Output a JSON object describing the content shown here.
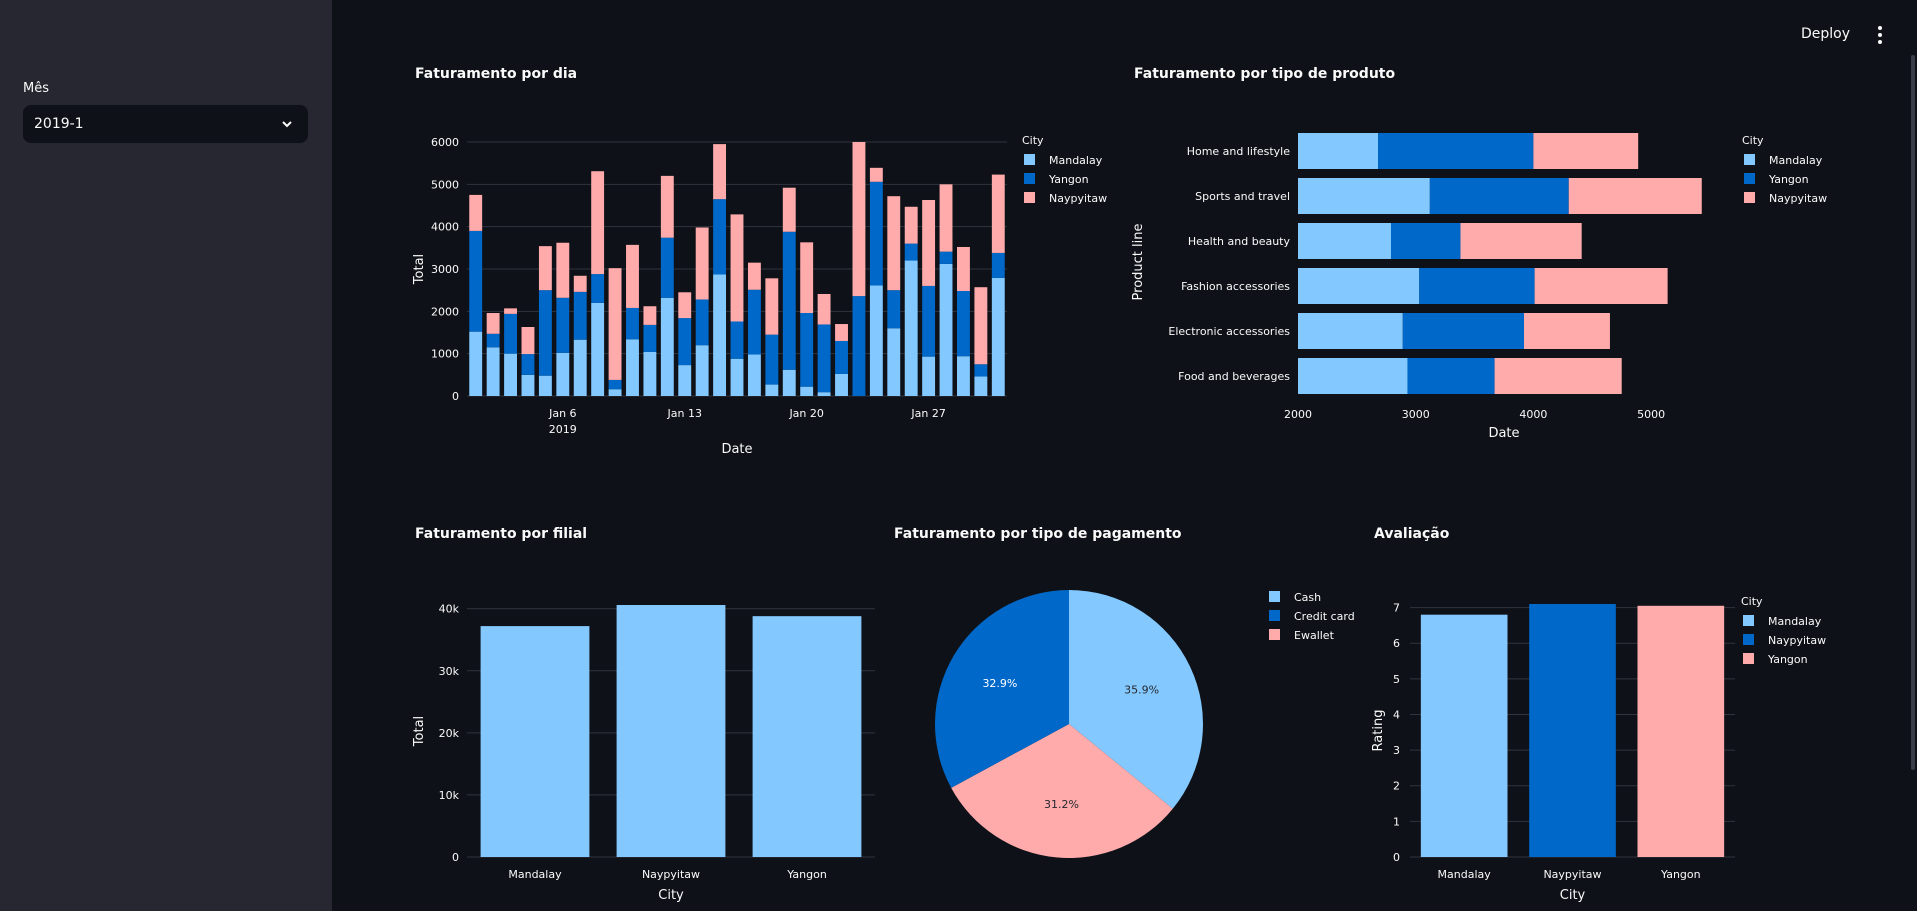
{
  "sidebar": {
    "filter_label": "Mês",
    "month_value": "2019-1"
  },
  "header": {
    "deploy_label": "Deploy"
  },
  "colors": {
    "mandalay": "#83c9ff",
    "yangon": "#0068c9",
    "naypyitaw": "#ffabab",
    "grid": "#31333f",
    "text": "#fafafa"
  },
  "chart_data": [
    {
      "id": "daily",
      "type": "bar",
      "title": "Faturamento por dia",
      "xlabel": "Date",
      "ylabel": "Total",
      "ylim": [
        0,
        6000
      ],
      "yticks": [
        "0",
        "1000",
        "2000",
        "3000",
        "4000",
        "5000",
        "6000"
      ],
      "xticks": [
        {
          "label": "Jan 6",
          "sub": "2019",
          "day": 6
        },
        {
          "label": "Jan 13",
          "sub": "",
          "day": 13
        },
        {
          "label": "Jan 20",
          "sub": "",
          "day": 20
        },
        {
          "label": "Jan 27",
          "sub": "",
          "day": 27
        }
      ],
      "legend_title": "City",
      "x": [
        1,
        2,
        3,
        4,
        5,
        6,
        7,
        8,
        9,
        10,
        11,
        12,
        13,
        14,
        15,
        16,
        17,
        18,
        19,
        20,
        21,
        22,
        23,
        24,
        25,
        26,
        27,
        28,
        29,
        30,
        31
      ],
      "series": [
        {
          "name": "Mandalay",
          "values": [
            1520,
            1150,
            1000,
            500,
            480,
            1020,
            1330,
            2200,
            160,
            1340,
            1040,
            2320,
            730,
            1200,
            2870,
            880,
            980,
            270,
            620,
            220,
            90,
            520,
            0,
            2610,
            1600,
            3200,
            930,
            3120,
            940,
            460,
            2790
          ]
        },
        {
          "name": "Yangon",
          "values": [
            2380,
            320,
            940,
            490,
            2020,
            1300,
            1130,
            680,
            220,
            740,
            640,
            1420,
            1110,
            1080,
            1780,
            880,
            1530,
            1180,
            3260,
            1740,
            1600,
            780,
            2360,
            2450,
            900,
            400,
            1670,
            290,
            1540,
            290,
            590
          ]
        },
        {
          "name": "Naypyitaw",
          "values": [
            850,
            490,
            130,
            640,
            1040,
            1300,
            380,
            2430,
            2640,
            1490,
            440,
            1460,
            610,
            1700,
            1300,
            2530,
            640,
            1330,
            1040,
            1670,
            720,
            400,
            3640,
            330,
            2220,
            870,
            2030,
            1590,
            1040,
            1820,
            1850
          ]
        }
      ]
    },
    {
      "id": "product",
      "type": "bar",
      "orientation": "horizontal",
      "title": "Faturamento por tipo de produto",
      "xlabel": "Date",
      "ylabel": "Product line",
      "xlim": [
        2000,
        5500
      ],
      "xticks": [
        "2000",
        "3000",
        "4000",
        "5000"
      ],
      "legend_title": "City",
      "categories": [
        "Home and lifestyle",
        "Sports and travel",
        "Health and beauty",
        "Fashion accessories",
        "Electronic accessories",
        "Food and beverages"
      ],
      "series": [
        {
          "name": "Mandalay",
          "values": [
            2680,
            3120,
            2790,
            3030,
            2890,
            2930
          ]
        },
        {
          "name": "Yangon",
          "values": [
            1320,
            1180,
            590,
            980,
            1030,
            740
          ]
        },
        {
          "name": "Naypyitaw",
          "values": [
            890,
            1130,
            1030,
            1130,
            730,
            1080
          ]
        }
      ]
    },
    {
      "id": "branch",
      "type": "bar",
      "title": "Faturamento por filial",
      "xlabel": "City",
      "ylabel": "Total",
      "ylim": [
        0,
        40600
      ],
      "yticks": [
        "0",
        "10k",
        "20k",
        "30k",
        "40k"
      ],
      "categories": [
        "Mandalay",
        "Naypyitaw",
        "Yangon"
      ],
      "values": [
        37200,
        40600,
        38800
      ]
    },
    {
      "id": "payment",
      "type": "pie",
      "title": "Faturamento por tipo de pagamento",
      "categories": [
        "Cash",
        "Credit card",
        "Ewallet"
      ],
      "values": [
        35.9,
        32.9,
        31.2
      ],
      "labels": [
        "35.9%",
        "32.9%",
        "31.2%"
      ]
    },
    {
      "id": "rating",
      "type": "bar",
      "title": "Avaliação",
      "xlabel": "City",
      "ylabel": "Rating",
      "ylim": [
        0,
        7.1
      ],
      "yticks": [
        "0",
        "1",
        "2",
        "3",
        "4",
        "5",
        "6",
        "7"
      ],
      "legend_title": "City",
      "categories": [
        "Mandalay",
        "Naypyitaw",
        "Yangon"
      ],
      "values": [
        6.8,
        7.1,
        7.05
      ]
    }
  ]
}
